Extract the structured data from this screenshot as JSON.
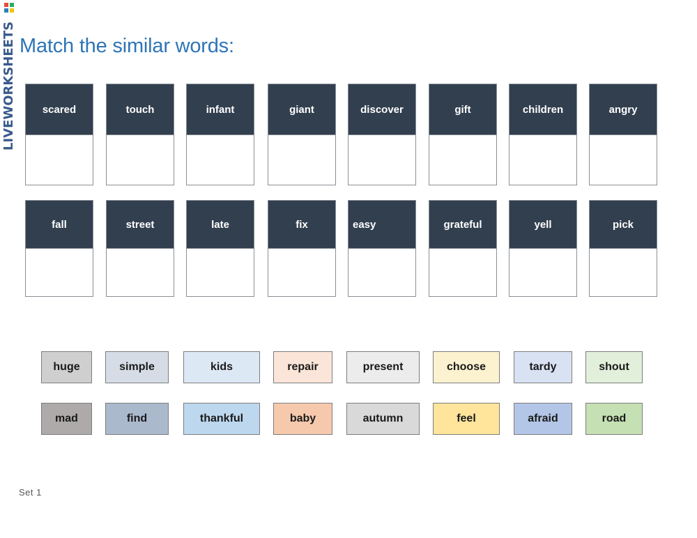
{
  "brand": {
    "text": "LIVEWORKSHEETS",
    "logo_letters": [
      "L",
      "W",
      "S"
    ]
  },
  "title": "Match the similar words:",
  "row1": [
    "scared",
    "touch",
    "infant",
    "giant",
    "discover",
    "gift",
    "children",
    "angry"
  ],
  "row2": [
    "fall",
    "street",
    "late",
    "fix",
    "easy",
    "grateful",
    "yell",
    "pick"
  ],
  "tiles_row1": [
    {
      "label": "huge",
      "color": "#cfcfcf"
    },
    {
      "label": "simple",
      "color": "#d5dce6"
    },
    {
      "label": "kids",
      "color": "#dde8f5"
    },
    {
      "label": "repair",
      "color": "#fbe5d9"
    },
    {
      "label": "present",
      "color": "#ececec"
    },
    {
      "label": "choose",
      "color": "#fdf2d0"
    },
    {
      "label": "tardy",
      "color": "#d9e2f3"
    },
    {
      "label": "shout",
      "color": "#e2efdb"
    }
  ],
  "tiles_row2": [
    {
      "label": "mad",
      "color": "#aeaaaa"
    },
    {
      "label": "find",
      "color": "#abb9cd"
    },
    {
      "label": "thankful",
      "color": "#bdd7ee"
    },
    {
      "label": "baby",
      "color": "#f6c9ad"
    },
    {
      "label": "autumn",
      "color": "#d9d9d9"
    },
    {
      "label": "feel",
      "color": "#fee59b"
    },
    {
      "label": "afraid",
      "color": "#b4c6e7"
    },
    {
      "label": "road",
      "color": "#c5e0b3"
    }
  ],
  "footer": "Set 1",
  "colors": {
    "card_header": "#323f4f",
    "title": "#2e75b6",
    "brand": "#3a5a8c"
  }
}
